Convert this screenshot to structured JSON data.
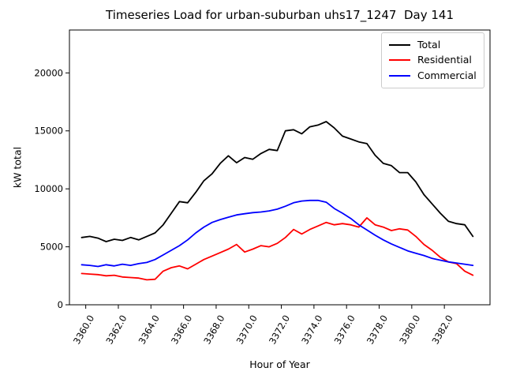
{
  "chart_data": {
    "type": "line",
    "title": "Timeseries Load for urban-suburban uhs17_1247  Day 141",
    "xlabel": "Hour of Year",
    "ylabel": "kW total",
    "xlim": [
      3359.0,
      3384.8
    ],
    "ylim": [
      0,
      23700
    ],
    "grid": false,
    "legend_position": "upper-right",
    "xticks": [
      3360,
      3362,
      3364,
      3366,
      3368,
      3370,
      3372,
      3374,
      3376,
      3378,
      3380,
      3382
    ],
    "xtick_labels": [
      "3360.0",
      "3362.0",
      "3364.0",
      "3366.0",
      "3368.0",
      "3370.0",
      "3372.0",
      "3374.0",
      "3376.0",
      "3378.0",
      "3380.0",
      "3382.0"
    ],
    "yticks": [
      0,
      5000,
      10000,
      15000,
      20000
    ],
    "ytick_labels": [
      "0",
      "5000",
      "10000",
      "15000",
      "20000"
    ],
    "x": [
      3359.75,
      3360.25,
      3360.75,
      3361.25,
      3361.75,
      3362.25,
      3362.75,
      3363.25,
      3363.75,
      3364.25,
      3364.75,
      3365.25,
      3365.75,
      3366.25,
      3366.75,
      3367.25,
      3367.75,
      3368.25,
      3368.75,
      3369.25,
      3369.75,
      3370.25,
      3370.75,
      3371.25,
      3371.75,
      3372.25,
      3372.75,
      3373.25,
      3373.75,
      3374.25,
      3374.75,
      3375.25,
      3375.75,
      3376.25,
      3376.75,
      3377.25,
      3377.75,
      3378.25,
      3378.75,
      3379.25,
      3379.75,
      3380.25,
      3380.75,
      3381.25,
      3381.75,
      3382.25,
      3382.75,
      3383.25,
      3383.75
    ],
    "series": [
      {
        "name": "Total",
        "color": "#000000",
        "values": [
          5800,
          5900,
          5750,
          5450,
          5650,
          5550,
          5800,
          5600,
          5900,
          6200,
          6900,
          7900,
          8900,
          8800,
          9700,
          10700,
          11300,
          12200,
          12850,
          12250,
          12700,
          12550,
          13050,
          13400,
          13300,
          15000,
          15100,
          14750,
          15350,
          15500,
          15800,
          15250,
          14550,
          14300,
          14050,
          13900,
          12900,
          12200,
          12000,
          11400,
          11400,
          10600,
          9500,
          8700,
          7900,
          7200,
          7000,
          6900,
          5900
        ]
      },
      {
        "name": "Residential",
        "color": "#ff0000",
        "values": [
          2700,
          2650,
          2600,
          2500,
          2550,
          2400,
          2350,
          2300,
          2150,
          2200,
          2900,
          3200,
          3350,
          3100,
          3500,
          3900,
          4200,
          4500,
          4800,
          5200,
          4550,
          4800,
          5100,
          5000,
          5300,
          5800,
          6500,
          6100,
          6500,
          6800,
          7100,
          6900,
          7000,
          6900,
          6700,
          7500,
          6900,
          6700,
          6400,
          6550,
          6450,
          5900,
          5200,
          4700,
          4100,
          3700,
          3550,
          2900,
          2550
        ]
      },
      {
        "name": "Commercial",
        "color": "#0000ff",
        "values": [
          3450,
          3400,
          3300,
          3450,
          3350,
          3500,
          3400,
          3550,
          3650,
          3900,
          4300,
          4700,
          5100,
          5600,
          6200,
          6700,
          7100,
          7350,
          7550,
          7750,
          7850,
          7950,
          8000,
          8100,
          8250,
          8500,
          8800,
          8950,
          9000,
          9000,
          8850,
          8300,
          7900,
          7450,
          6900,
          6450,
          6000,
          5600,
          5250,
          4950,
          4650,
          4450,
          4250,
          4000,
          3850,
          3700,
          3600,
          3500,
          3400
        ]
      }
    ]
  }
}
